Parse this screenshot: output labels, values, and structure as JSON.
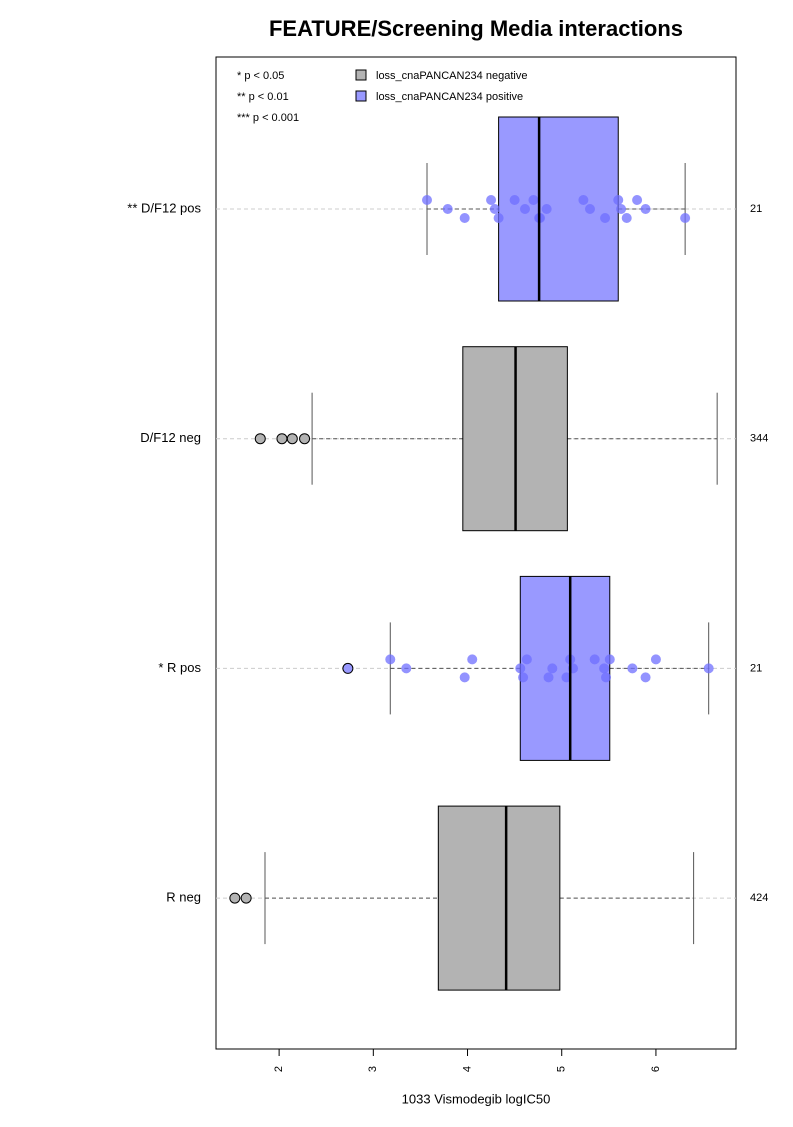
{
  "chart_data": {
    "type": "boxplot",
    "title": "FEATURE/Screening Media interactions",
    "xlabel": "1033 Vismodegib logIC50",
    "xlim": [
      1.33,
      6.85
    ],
    "xticks": [
      2,
      3,
      4,
      5,
      6
    ],
    "categories": [
      "** D/F12 pos",
      "D/F12 neg",
      "* R pos",
      "R neg"
    ],
    "counts": [
      21,
      344,
      21,
      424
    ],
    "notes": [
      "* p < 0.05",
      "** p < 0.01",
      "*** p < 0.001"
    ],
    "series": [
      {
        "name": "loss_cnaPANCAN234 negative",
        "color": "#b3b3b3"
      },
      {
        "name": "loss_cnaPANCAN234 positive",
        "color": "#9999ff"
      }
    ],
    "group_series": [
      1,
      0,
      1,
      0
    ],
    "boxes": [
      {
        "whislo": 3.57,
        "q1": 4.33,
        "med": 4.76,
        "q3": 5.6,
        "whishi": 6.31
      },
      {
        "whislo": 2.35,
        "q1": 3.95,
        "med": 4.51,
        "q3": 5.06,
        "whishi": 6.65
      },
      {
        "whislo": 3.18,
        "q1": 4.56,
        "med": 5.09,
        "q3": 5.51,
        "whishi": 6.56
      },
      {
        "whislo": 1.85,
        "q1": 3.69,
        "med": 4.41,
        "q3": 4.98,
        "whishi": 6.4
      }
    ],
    "outliers": [
      [],
      [
        1.8,
        2.03,
        2.14,
        2.27
      ],
      [
        2.73
      ],
      [
        1.53,
        1.65
      ]
    ],
    "points": [
      [
        3.57,
        3.79,
        3.97,
        4.25,
        4.29,
        4.33,
        4.5,
        4.61,
        4.76,
        4.7,
        4.84,
        4.77,
        5.23,
        5.3,
        5.46,
        5.6,
        5.63,
        5.69,
        5.8,
        5.89,
        6.31
      ],
      [],
      [
        3.18,
        3.35,
        3.97,
        4.05,
        4.56,
        4.59,
        4.63,
        4.9,
        4.86,
        5.09,
        5.12,
        5.05,
        5.35,
        5.45,
        5.47,
        5.51,
        5.75,
        5.89,
        6.0,
        6.56
      ],
      []
    ]
  }
}
